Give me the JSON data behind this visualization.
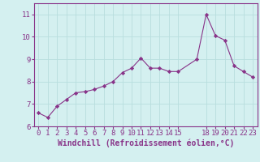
{
  "x": [
    0,
    1,
    2,
    3,
    4,
    5,
    6,
    7,
    8,
    9,
    10,
    11,
    12,
    13,
    14,
    15,
    17,
    18,
    19,
    20,
    21,
    22,
    23
  ],
  "y": [
    6.6,
    6.4,
    6.9,
    7.2,
    7.5,
    7.55,
    7.65,
    7.8,
    8.0,
    8.4,
    8.6,
    9.05,
    8.6,
    8.6,
    8.45,
    8.45,
    9.0,
    11.0,
    10.05,
    9.85,
    8.7,
    8.45,
    8.2
  ],
  "line_color": "#883388",
  "marker": "D",
  "marker_size": 2.2,
  "background_color": "#d4f0f0",
  "grid_color": "#b8dede",
  "xlabel": "Windchill (Refroidissement éolien,°C)",
  "ylim": [
    6,
    11.5
  ],
  "xlim": [
    -0.5,
    23.5
  ],
  "yticks": [
    6,
    7,
    8,
    9,
    10,
    11
  ],
  "xticks": [
    0,
    1,
    2,
    3,
    4,
    5,
    6,
    7,
    8,
    9,
    10,
    11,
    12,
    13,
    14,
    15,
    18,
    19,
    20,
    21,
    22,
    23
  ],
  "tick_color": "#883388",
  "spine_color": "#883388",
  "font_size": 6.5
}
